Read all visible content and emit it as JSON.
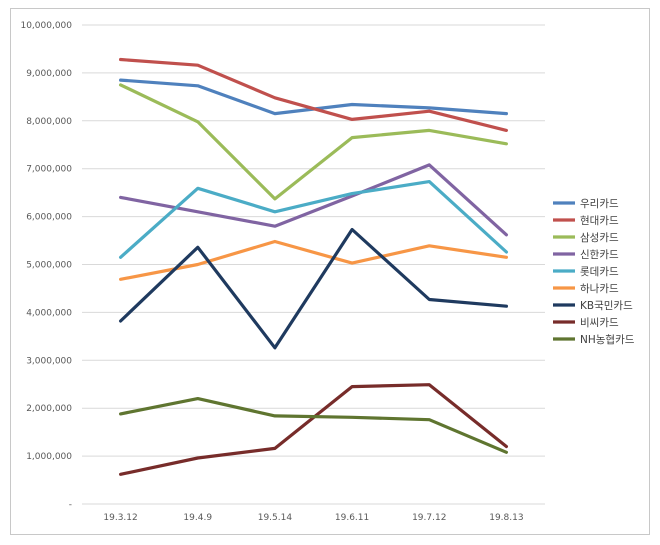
{
  "chart_data": {
    "type": "line",
    "title": "",
    "xlabel": "",
    "ylabel": "",
    "categories": [
      "19.3.12",
      "19.4.9",
      "19.5.14",
      "19.6.11",
      "19.7.12",
      "19.8.13"
    ],
    "ylim": [
      0,
      10000000
    ],
    "y_ticks": [
      0,
      1000000,
      2000000,
      3000000,
      4000000,
      5000000,
      6000000,
      7000000,
      8000000,
      9000000,
      10000000
    ],
    "y_tick_labels": [
      "-",
      "1,000,000",
      "2,000,000",
      "3,000,000",
      "4,000,000",
      "5,000,000",
      "6,000,000",
      "7,000,000",
      "8,000,000",
      "9,000,000",
      "10,000,000"
    ],
    "grid": true,
    "legend_position": "right",
    "series": [
      {
        "name": "우리카드",
        "color": "#4f81bd",
        "values": [
          8850000,
          8730000,
          8150000,
          8340000,
          8270000,
          8150000
        ]
      },
      {
        "name": "현대카드",
        "color": "#c0504d",
        "values": [
          9280000,
          9160000,
          8480000,
          8030000,
          8200000,
          7800000
        ]
      },
      {
        "name": "삼성카드",
        "color": "#9bbb59",
        "values": [
          8750000,
          7980000,
          6370000,
          7650000,
          7800000,
          7520000
        ]
      },
      {
        "name": "신한카드",
        "color": "#8064a2",
        "values": [
          6400000,
          6100000,
          5800000,
          6430000,
          7080000,
          5620000
        ]
      },
      {
        "name": "롯데카드",
        "color": "#4bacc6",
        "values": [
          5150000,
          6590000,
          6100000,
          6480000,
          6730000,
          5260000
        ]
      },
      {
        "name": "하나카드",
        "color": "#f79646",
        "values": [
          4690000,
          5000000,
          5480000,
          5030000,
          5390000,
          5150000
        ]
      },
      {
        "name": "KB국민카드",
        "color": "#1f3a5f",
        "values": [
          3820000,
          5360000,
          3260000,
          5730000,
          4270000,
          4130000
        ]
      },
      {
        "name": "비씨카드",
        "color": "#772c2a",
        "values": [
          620000,
          960000,
          1160000,
          2450000,
          2490000,
          1200000
        ]
      },
      {
        "name": "NH농협카드",
        "color": "#5f7530",
        "values": [
          1880000,
          2200000,
          1840000,
          1810000,
          1760000,
          1080000
        ]
      }
    ]
  }
}
